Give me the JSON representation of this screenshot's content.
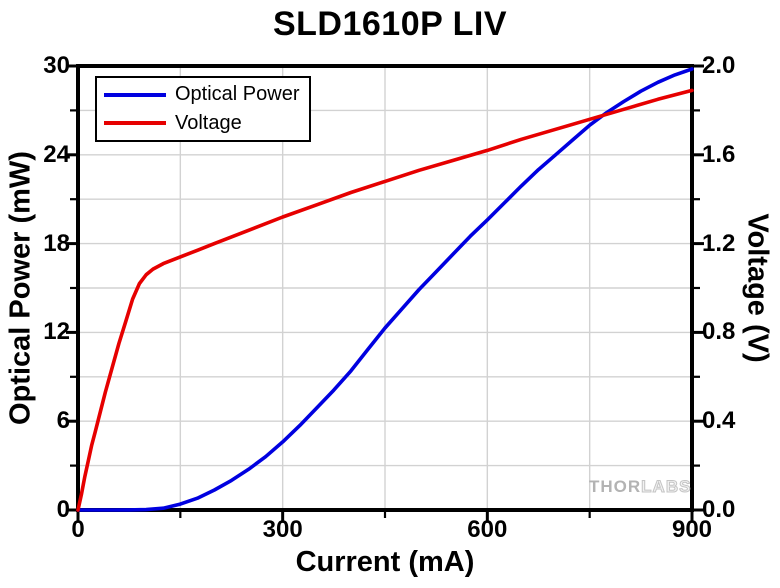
{
  "title": "SLD1610P LIV",
  "watermark": {
    "part1": "THOR",
    "part2": "LABS"
  },
  "colors": {
    "optical_power": "#0000e0",
    "voltage": "#e60000",
    "grid": "#d2d2d2",
    "axis": "#000000",
    "background": "#ffffff",
    "watermark": "#b3b3b3"
  },
  "chart_data": {
    "type": "line",
    "title": "SLD1610P LIV",
    "xlabel": "Current (mA)",
    "ylabel_left": "Optical Power (mW)",
    "ylabel_right": "Voltage (V)",
    "xlim": [
      0,
      900
    ],
    "ylim_left": [
      0,
      30
    ],
    "ylim_right": [
      0.0,
      2.0
    ],
    "grid": true,
    "legend_position": "top-left",
    "x_ticks": [
      {
        "v": 0,
        "label": "0"
      },
      {
        "v": 300,
        "label": "300"
      },
      {
        "v": 600,
        "label": "600"
      },
      {
        "v": 900,
        "label": "900"
      }
    ],
    "x_minor_ticks": [
      150,
      450,
      750
    ],
    "y_left_ticks": [
      {
        "v": 0,
        "label": "0"
      },
      {
        "v": 6,
        "label": "6"
      },
      {
        "v": 12,
        "label": "12"
      },
      {
        "v": 18,
        "label": "18"
      },
      {
        "v": 24,
        "label": "24"
      },
      {
        "v": 30,
        "label": "30"
      }
    ],
    "y_left_minor_ticks": [
      3,
      9,
      15,
      21,
      27
    ],
    "y_right_ticks": [
      {
        "v": 0.0,
        "label": "0.0"
      },
      {
        "v": 0.4,
        "label": "0.4"
      },
      {
        "v": 0.8,
        "label": "0.8"
      },
      {
        "v": 1.2,
        "label": "1.2"
      },
      {
        "v": 1.6,
        "label": "1.6"
      },
      {
        "v": 2.0,
        "label": "2.0"
      }
    ],
    "y_right_minor_ticks": [
      0.2,
      0.6,
      1.0,
      1.4,
      1.8
    ],
    "legend": {
      "items": [
        {
          "label": "Optical Power",
          "color": "#0000e0"
        },
        {
          "label": "Voltage",
          "color": "#e60000"
        }
      ]
    },
    "series": [
      {
        "name": "Optical Power",
        "axis": "left",
        "color": "#0000e0",
        "x": [
          0,
          25,
          50,
          75,
          100,
          125,
          150,
          175,
          200,
          225,
          250,
          275,
          300,
          325,
          350,
          375,
          400,
          425,
          450,
          475,
          500,
          525,
          550,
          575,
          600,
          625,
          650,
          675,
          700,
          725,
          750,
          775,
          800,
          825,
          850,
          875,
          900
        ],
        "values": [
          0,
          0,
          0,
          0.01,
          0.03,
          0.12,
          0.4,
          0.8,
          1.35,
          2.0,
          2.75,
          3.6,
          4.6,
          5.7,
          6.9,
          8.1,
          9.4,
          10.85,
          12.3,
          13.6,
          14.9,
          16.1,
          17.3,
          18.5,
          19.6,
          20.75,
          21.9,
          23.0,
          24.0,
          25.0,
          26.0,
          26.85,
          27.6,
          28.3,
          28.9,
          29.4,
          29.8
        ]
      },
      {
        "name": "Voltage",
        "axis": "right",
        "color": "#e60000",
        "x": [
          0,
          5,
          10,
          15,
          20,
          25,
          30,
          40,
          50,
          60,
          70,
          80,
          90,
          100,
          110,
          125,
          150,
          175,
          200,
          250,
          300,
          350,
          400,
          450,
          500,
          550,
          600,
          650,
          700,
          750,
          800,
          850,
          900
        ],
        "values": [
          0,
          0.07,
          0.15,
          0.22,
          0.29,
          0.35,
          0.41,
          0.53,
          0.64,
          0.75,
          0.85,
          0.95,
          1.02,
          1.06,
          1.085,
          1.11,
          1.14,
          1.17,
          1.2,
          1.26,
          1.32,
          1.375,
          1.43,
          1.48,
          1.53,
          1.575,
          1.62,
          1.67,
          1.715,
          1.76,
          1.805,
          1.85,
          1.89
        ]
      }
    ]
  }
}
